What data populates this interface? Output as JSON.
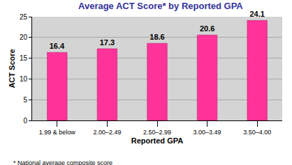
{
  "chart_data": {
    "type": "bar",
    "title": "Average ACT Score* by Reported GPA",
    "x_label": "Reported GPA",
    "y_label": "ACT Score",
    "categories": [
      "1.99 & below",
      "2.00–2.49",
      "2.50–2.99",
      "3.00–3.49",
      "3.50–4.00"
    ],
    "values": [
      16.4,
      17.3,
      18.6,
      20.6,
      24.1
    ],
    "color": "#ff3399",
    "ylim": [
      0,
      25
    ],
    "yticks": [
      0,
      5,
      10,
      15,
      20,
      25
    ],
    "grid": true,
    "data_labels": true,
    "annotation": "* National average composite score"
  }
}
